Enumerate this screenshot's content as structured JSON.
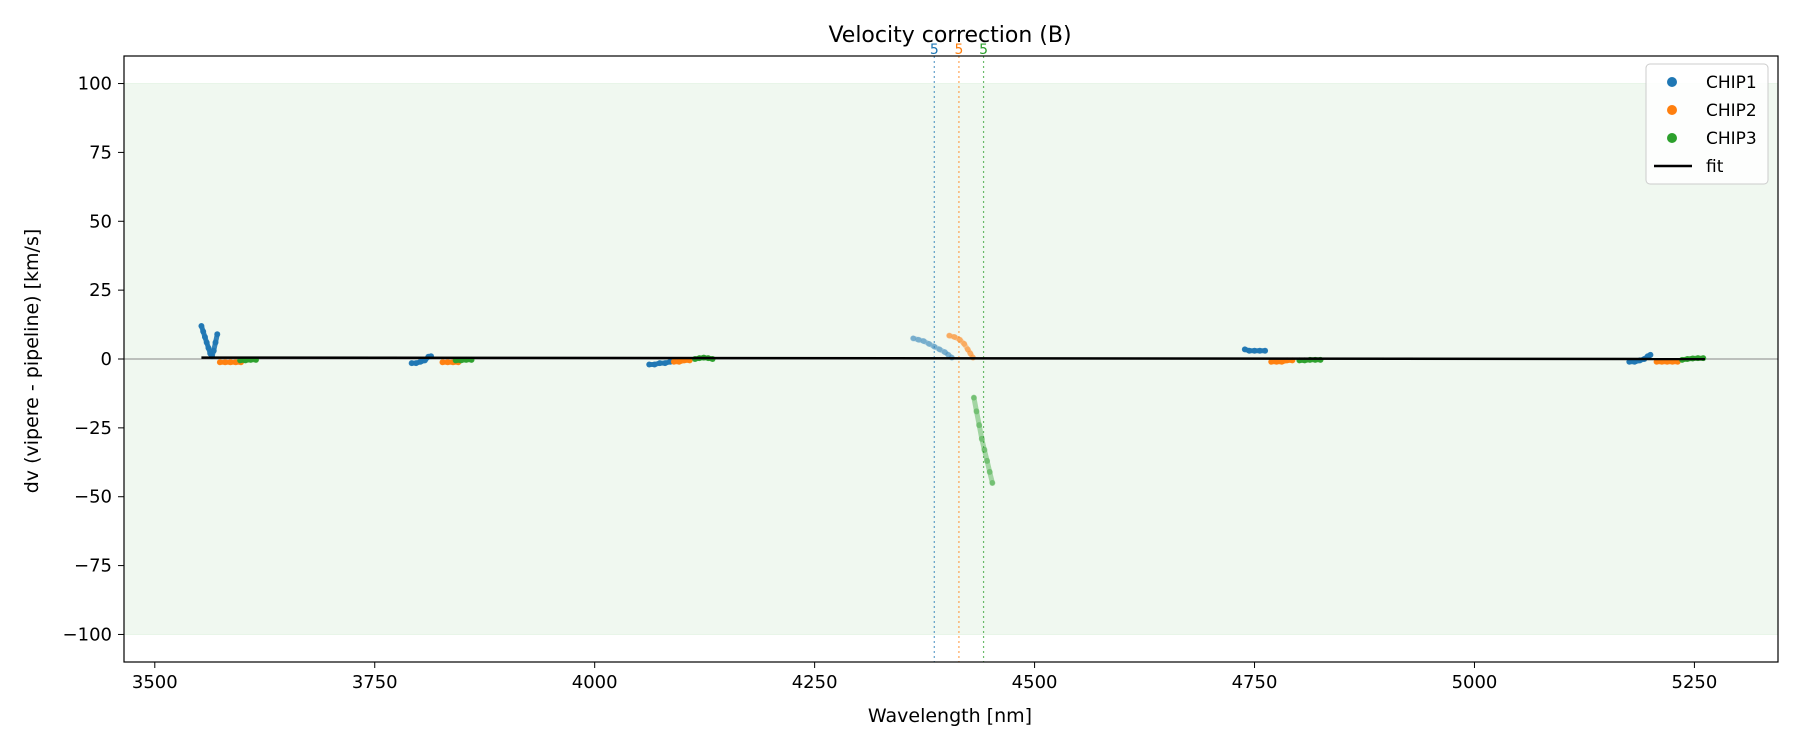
{
  "chart_data": {
    "type": "scatter",
    "title": "Velocity correction (B)",
    "xlabel": "Wavelength [nm]",
    "ylabel": "dv (vipere - pipeline) [km/s]",
    "xlim": [
      3465,
      5345
    ],
    "ylim": [
      -110,
      110
    ],
    "xticks": [
      3500,
      3750,
      4000,
      4250,
      4500,
      4750,
      5000,
      5250
    ],
    "yticks": [
      -100,
      -75,
      -50,
      -25,
      0,
      25,
      50,
      75,
      100
    ],
    "xtick_labels": [
      "3500",
      "3750",
      "4000",
      "4250",
      "4500",
      "4750",
      "5000",
      "5250"
    ],
    "ytick_labels": [
      "−100",
      "−75",
      "−50",
      "−25",
      "0",
      "25",
      "50",
      "75",
      "100"
    ],
    "band": {
      "y0": -100,
      "y1": 100,
      "color": "#2ca02c"
    },
    "zero_line": 0,
    "fit": {
      "name": "fit",
      "x": [
        3553,
        5262
      ],
      "y": [
        0.5,
        0.0
      ],
      "color": "#000000"
    },
    "legend": {
      "position": "top-right",
      "entries": [
        {
          "label": "CHIP1",
          "color": "#1f77b4",
          "kind": "dot"
        },
        {
          "label": "CHIP2",
          "color": "#ff7f0e",
          "kind": "dot"
        },
        {
          "label": "CHIP3",
          "color": "#2ca02c",
          "kind": "dot"
        },
        {
          "label": "fit",
          "color": "#000000",
          "kind": "line"
        }
      ]
    },
    "markers": [
      {
        "x": 4386,
        "label": "5",
        "color": "#1f77b4"
      },
      {
        "x": 4414,
        "label": "5",
        "color": "#ff7f0e"
      },
      {
        "x": 4442,
        "label": "5",
        "color": "#2ca02c"
      }
    ],
    "series": [
      {
        "name": "CHIP1",
        "color": "#1f77b4",
        "segments": [
          {
            "opacity": 0.9,
            "points": [
              [
                3553,
                12
              ],
              [
                3555,
                10
              ],
              [
                3557,
                8
              ],
              [
                3559,
                6
              ],
              [
                3561,
                4
              ],
              [
                3563,
                2
              ],
              [
                3565,
                1
              ],
              [
                3567,
                3
              ],
              [
                3569,
                6
              ],
              [
                3571,
                9
              ]
            ]
          },
          {
            "opacity": 0.9,
            "points": [
              [
                3792,
                -1.5
              ],
              [
                3797,
                -1.5
              ],
              [
                3802,
                -1
              ],
              [
                3807,
                -0.5
              ],
              [
                3811,
                0.8
              ],
              [
                3814,
                1
              ]
            ]
          },
          {
            "opacity": 0.9,
            "points": [
              [
                4062,
                -2
              ],
              [
                4068,
                -2
              ],
              [
                4074,
                -1.5
              ],
              [
                4080,
                -1.5
              ],
              [
                4086,
                -1
              ]
            ]
          },
          {
            "opacity": 0.35,
            "points": [
              [
                4362,
                7.5
              ],
              [
                4368,
                7
              ],
              [
                4374,
                6.5
              ],
              [
                4380,
                5.5
              ],
              [
                4386,
                4.5
              ],
              [
                4392,
                3.5
              ],
              [
                4398,
                2.5
              ],
              [
                4402,
                1.5
              ],
              [
                4406,
                0.5
              ]
            ]
          },
          {
            "opacity": 0.9,
            "points": [
              [
                4739,
                3.5
              ],
              [
                4744,
                3
              ],
              [
                4750,
                3
              ],
              [
                4756,
                3
              ],
              [
                4762,
                3
              ]
            ]
          },
          {
            "opacity": 0.9,
            "points": [
              [
                5176,
                -1
              ],
              [
                5182,
                -1
              ],
              [
                5188,
                -0.5
              ],
              [
                5193,
                0
              ],
              [
                5197,
                1
              ],
              [
                5200,
                1.5
              ]
            ]
          }
        ]
      },
      {
        "name": "CHIP2",
        "color": "#ff7f0e",
        "segments": [
          {
            "opacity": 0.9,
            "points": [
              [
                3574,
                -1.2
              ],
              [
                3580,
                -1.2
              ],
              [
                3586,
                -1.2
              ],
              [
                3592,
                -1.2
              ],
              [
                3598,
                -1.2
              ]
            ]
          },
          {
            "opacity": 0.9,
            "points": [
              [
                3827,
                -1.2
              ],
              [
                3833,
                -1.2
              ],
              [
                3839,
                -1.2
              ],
              [
                3845,
                -1.2
              ]
            ]
          },
          {
            "opacity": 0.9,
            "points": [
              [
                4090,
                -1
              ],
              [
                4096,
                -1
              ],
              [
                4102,
                -0.5
              ],
              [
                4108,
                -0.5
              ]
            ]
          },
          {
            "opacity": 0.4,
            "points": [
              [
                4403,
                8.5
              ],
              [
                4409,
                8
              ],
              [
                4415,
                7
              ],
              [
                4420,
                5.5
              ],
              [
                4424,
                3.5
              ],
              [
                4427,
                2
              ],
              [
                4430,
                0.5
              ]
            ]
          },
          {
            "opacity": 0.9,
            "points": [
              [
                4769,
                -1
              ],
              [
                4775,
                -1
              ],
              [
                4781,
                -1
              ],
              [
                4787,
                -0.5
              ],
              [
                4793,
                -0.5
              ]
            ]
          },
          {
            "opacity": 0.9,
            "points": [
              [
                5207,
                -1
              ],
              [
                5213,
                -1
              ],
              [
                5219,
                -1
              ],
              [
                5225,
                -1
              ],
              [
                5231,
                -1
              ]
            ]
          }
        ]
      },
      {
        "name": "CHIP3",
        "color": "#2ca02c",
        "segments": [
          {
            "opacity": 0.9,
            "points": [
              [
                3597,
                -0.5
              ],
              [
                3603,
                -0.5
              ],
              [
                3609,
                -0.3
              ],
              [
                3615,
                -0.3
              ]
            ]
          },
          {
            "opacity": 0.9,
            "points": [
              [
                3842,
                -0.5
              ],
              [
                3848,
                -0.5
              ],
              [
                3854,
                -0.3
              ],
              [
                3860,
                -0.3
              ]
            ]
          },
          {
            "opacity": 0.9,
            "points": [
              [
                4114,
                0
              ],
              [
                4119,
                0.3
              ],
              [
                4124,
                0.5
              ],
              [
                4129,
                0.3
              ],
              [
                4134,
                0
              ]
            ]
          },
          {
            "opacity": 0.4,
            "points": [
              [
                4431,
                -14
              ],
              [
                4434,
                -19
              ],
              [
                4437,
                -24
              ],
              [
                4440,
                -29
              ],
              [
                4443,
                -33
              ],
              [
                4446,
                -37
              ],
              [
                4449,
                -41
              ],
              [
                4452,
                -45
              ]
            ]
          },
          {
            "opacity": 0.9,
            "points": [
              [
                4801,
                -0.5
              ],
              [
                4807,
                -0.5
              ],
              [
                4813,
                -0.3
              ],
              [
                4819,
                -0.3
              ],
              [
                4825,
                -0.3
              ]
            ]
          },
          {
            "opacity": 0.9,
            "points": [
              [
                5236,
                -0.3
              ],
              [
                5242,
                0
              ],
              [
                5248,
                0.2
              ],
              [
                5254,
                0.3
              ],
              [
                5260,
                0.3
              ]
            ]
          }
        ]
      }
    ]
  }
}
